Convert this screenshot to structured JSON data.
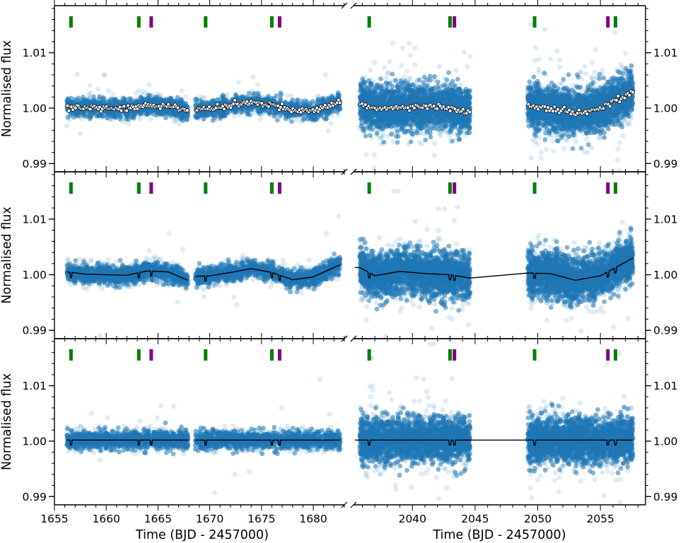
{
  "chart_data": {
    "type": "scatter",
    "xlabel": "Time (BJD - 2457000)",
    "ylabel": "Normalised flux",
    "ylim": [
      0.9885,
      1.0185
    ],
    "yticks": [
      0.99,
      1.0,
      1.01
    ],
    "ytick_labels": [
      "0.99",
      "1.00",
      "1.01"
    ],
    "left_x": {
      "xlim": [
        1655,
        1683
      ],
      "ticks": [
        1655,
        1660,
        1665,
        1670,
        1675,
        1680
      ],
      "tick_labels": [
        "1655",
        "1660",
        "1665",
        "1670",
        "1675",
        "1680"
      ]
    },
    "right_x": {
      "xlim": [
        2035.3,
        2058.6
      ],
      "ticks": [
        2040,
        2045,
        2050,
        2055
      ],
      "tick_labels": [
        "2040",
        "2045",
        "2050",
        "2055"
      ]
    },
    "broken_x_axis": true,
    "colors": {
      "points": "#1f77b4",
      "model": "#000000",
      "binned_fill": "#ffffff",
      "transit_planet_b": "#008000",
      "transit_planet_c": "#800080"
    },
    "transit_markers": {
      "green": [
        1656.6,
        1663.15,
        1669.6,
        1676.0,
        2036.55,
        2043.0,
        2049.75,
        2056.2
      ],
      "purple": [
        1664.35,
        1676.75,
        2043.35,
        2055.6
      ]
    },
    "data_segments": [
      [
        1656.2,
        1667.9
      ],
      [
        1668.6,
        1682.6
      ],
      [
        2035.8,
        2044.6
      ],
      [
        2049.2,
        2057.6
      ]
    ],
    "panels": [
      {
        "name": "top",
        "description": "raw flux with binned flux",
        "trend": [
          [
            1656.2,
            1.0004
          ],
          [
            1658,
            1.0001
          ],
          [
            1660,
            1.0
          ],
          [
            1662,
            0.9999
          ],
          [
            1664,
            1.0006
          ],
          [
            1666,
            1.0004
          ],
          [
            1667.9,
            0.9995
          ],
          [
            1668.6,
            0.9998
          ],
          [
            1670,
            0.9998
          ],
          [
            1672,
            1.0004
          ],
          [
            1674,
            1.001
          ],
          [
            1676,
            1.0005
          ],
          [
            1678,
            0.9996
          ],
          [
            1680,
            0.9995
          ],
          [
            1682.6,
            1.0012
          ],
          [
            2035.8,
            1.001
          ],
          [
            2037,
            0.9998
          ],
          [
            2039,
            1.0002
          ],
          [
            2041,
            1.0004
          ],
          [
            2043,
            0.9999
          ],
          [
            2044.6,
            0.9994
          ],
          [
            2049.2,
            1.0003
          ],
          [
            2051,
            1.0
          ],
          [
            2053,
            0.999
          ],
          [
            2055,
            1.0
          ],
          [
            2057.6,
            1.003
          ]
        ]
      },
      {
        "name": "middle",
        "description": "raw flux with GP + transit model",
        "trend": [
          [
            1656.2,
            1.0005
          ],
          [
            1658,
            1.0001
          ],
          [
            1660,
            1.0
          ],
          [
            1662,
            0.9999
          ],
          [
            1664,
            1.0007
          ],
          [
            1666,
            1.0005
          ],
          [
            1667.9,
            0.999
          ],
          [
            1668.6,
            0.9997
          ],
          [
            1670,
            0.9998
          ],
          [
            1672,
            1.0004
          ],
          [
            1674,
            1.0011
          ],
          [
            1676,
            1.0004
          ],
          [
            1678,
            0.9991
          ],
          [
            1680,
            0.9996
          ],
          [
            1682.6,
            1.0018
          ],
          [
            2035.8,
            1.0013
          ],
          [
            2037,
            0.9998
          ],
          [
            2039,
            1.0006
          ],
          [
            2041,
            1.0002
          ],
          [
            2043,
            1.0
          ],
          [
            2044.6,
            0.9994
          ],
          [
            2049.2,
            1.0003
          ],
          [
            2051,
            1.0002
          ],
          [
            2053,
            0.999
          ],
          [
            2055,
            0.9998
          ],
          [
            2057.6,
            1.003
          ]
        ]
      },
      {
        "name": "bottom",
        "description": "detrended flux with transit model",
        "trend": [
          [
            1656.2,
            1.0002
          ],
          [
            1682.6,
            1.0002
          ],
          [
            2035.8,
            1.0002
          ],
          [
            2057.6,
            1.0002
          ]
        ]
      }
    ]
  }
}
